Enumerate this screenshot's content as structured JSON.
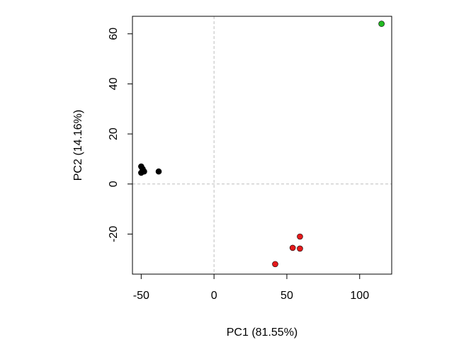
{
  "chart_data": {
    "type": "scatter",
    "xlabel": "PC1 (81.55%)",
    "ylabel": "PC2 (14.16%)",
    "xlim": [
      -56,
      122
    ],
    "ylim": [
      -36,
      67
    ],
    "x_ticks": [
      -50,
      0,
      50,
      100
    ],
    "y_ticks": [
      -20,
      0,
      20,
      40,
      60
    ],
    "x_tick_labels": [
      "-50",
      "0",
      "50",
      "100"
    ],
    "y_tick_labels": [
      "-20",
      "0",
      "20",
      "40",
      "60"
    ],
    "reference_lines": {
      "x": 0,
      "y": 0,
      "style": "dashed",
      "color": "#bdbdbd"
    },
    "legend": "none",
    "grid": false,
    "series": [
      {
        "color": "#000000",
        "points": [
          {
            "x": -50,
            "y": 7
          },
          {
            "x": -49,
            "y": 6
          },
          {
            "x": -50,
            "y": 4.5
          },
          {
            "x": -48,
            "y": 5
          },
          {
            "x": -38,
            "y": 5
          }
        ]
      },
      {
        "color": "#e41a1c",
        "points": [
          {
            "x": 42,
            "y": -32
          },
          {
            "x": 54,
            "y": -25.5
          },
          {
            "x": 59,
            "y": -21
          },
          {
            "x": 59,
            "y": -25.8
          }
        ]
      },
      {
        "color": "#22bb22",
        "points": [
          {
            "x": 115,
            "y": 64
          }
        ]
      }
    ]
  }
}
